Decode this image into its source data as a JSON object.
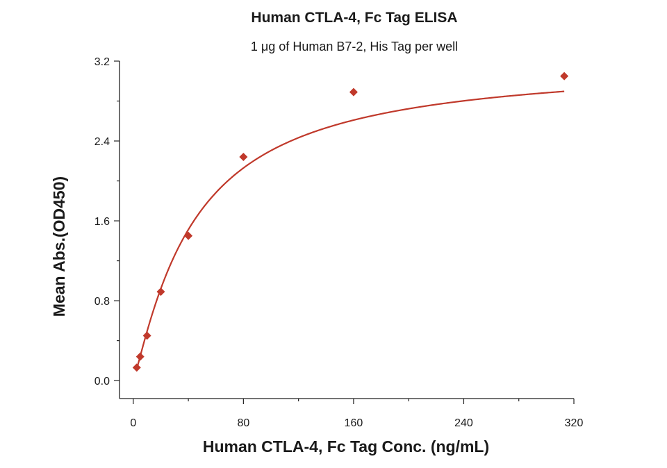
{
  "chart_data": {
    "type": "scatter",
    "title": "Human CTLA-4, Fc Tag ELISA",
    "subtitle": "1 μg of Human B7-2, His Tag per well",
    "xlabel": "Human CTLA-4, Fc Tag Conc. (ng/mL)",
    "ylabel": "Mean Abs.(OD450)",
    "xlim": [
      -10,
      320
    ],
    "ylim": [
      -0.18,
      3.2
    ],
    "x_ticks": [
      0,
      80,
      160,
      240,
      320
    ],
    "y_ticks": [
      0.0,
      0.8,
      1.6,
      2.4,
      3.2
    ],
    "x_tick_labels": [
      "0",
      "80",
      "160",
      "240",
      "320"
    ],
    "y_tick_labels": [
      "0.0",
      "0.8",
      "1.6",
      "2.4",
      "3.2"
    ],
    "grid": false,
    "series": [
      {
        "color": "#c0392b",
        "marker": "diamond",
        "x": [
          2.5,
          5,
          10,
          20,
          40,
          80,
          160,
          313
        ],
        "y": [
          0.13,
          0.24,
          0.45,
          0.89,
          1.45,
          2.24,
          2.89,
          3.05
        ]
      }
    ],
    "fit_curve": {
      "color": "#c0392b",
      "model": "4PL",
      "bottom": 0.0,
      "top": 3.2,
      "ec50": 44,
      "hill": 1.15
    }
  }
}
